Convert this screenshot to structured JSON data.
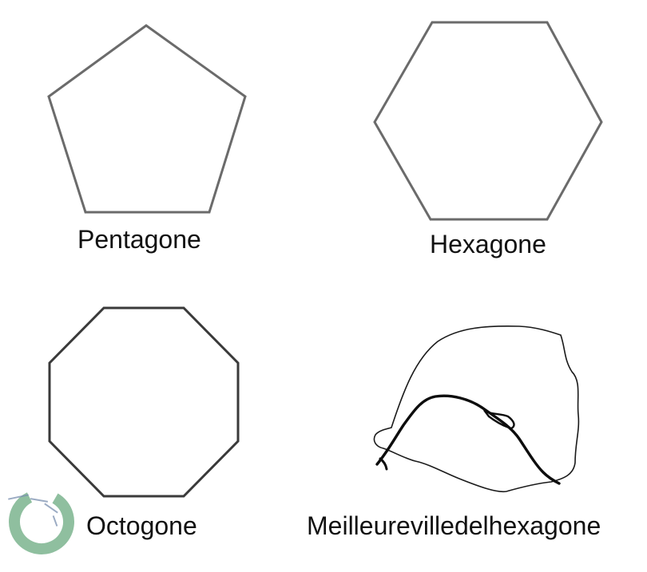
{
  "captions": {
    "pentagon": "Pentagone",
    "hexagon": "Hexagone",
    "octagon": "Octogone",
    "city": "Meilleurevilledelhexagone"
  },
  "colors": {
    "outline": "#6b6b6b",
    "octagon_outline": "#3a3a3a",
    "map_outline": "#1a1a1a",
    "river": "#0d0d0d",
    "watermark": "#8fbf9f",
    "text": "#111111"
  },
  "icons": {
    "watermark": "circular-watermark-logo"
  }
}
